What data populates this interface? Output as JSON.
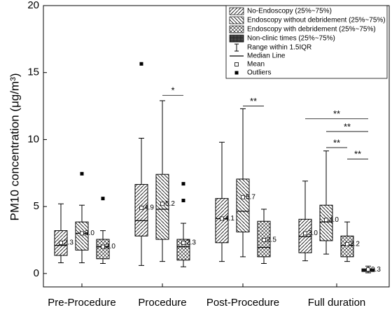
{
  "chart_data": {
    "type": "box",
    "y_label": "PM10 concentration (μg/m³)",
    "categories": [
      "Pre-Procedure",
      "Procedure",
      "Post-Procedure",
      "Full duration"
    ],
    "ylim": [
      -1,
      20
    ],
    "yticks": [
      0,
      5,
      10,
      15,
      20
    ],
    "series": [
      {
        "name": "No-Endoscopy (25%~75%)",
        "pattern": "forward",
        "color": "#000000",
        "stats": [
          {
            "low": 0.8,
            "q1": 1.35,
            "median": 2.1,
            "q3": 3.2,
            "high": 5.2,
            "mean": 2.3,
            "mean_label": "2.3",
            "outliers": []
          },
          {
            "low": 0.6,
            "q1": 2.8,
            "median": 3.95,
            "q3": 6.65,
            "high": 10.1,
            "mean": 4.9,
            "mean_label": "4.9",
            "outliers": [
              15.65
            ]
          },
          {
            "low": 0.9,
            "q1": 2.3,
            "median": 4.1,
            "q3": 5.6,
            "high": 9.8,
            "mean": 4.1,
            "mean_label": "4.1",
            "outliers": []
          },
          {
            "low": 0.95,
            "q1": 1.55,
            "median": 2.75,
            "q3": 4.05,
            "high": 6.9,
            "mean": 3.0,
            "mean_label": "3.0",
            "outliers": []
          }
        ]
      },
      {
        "name": "Endoscopy without debridement (25%~75%)",
        "pattern": "backward",
        "color": "#000000",
        "stats": [
          {
            "low": 0.8,
            "q1": 1.75,
            "median": 3.0,
            "q3": 3.85,
            "high": 5.1,
            "mean": 3.0,
            "mean_label": "3.0",
            "outliers": [
              7.45
            ]
          },
          {
            "low": 0.9,
            "q1": 2.55,
            "median": 4.8,
            "q3": 7.4,
            "high": 12.9,
            "mean": 5.2,
            "mean_label": "5.2",
            "outliers": []
          },
          {
            "low": 1.25,
            "q1": 3.1,
            "median": 4.65,
            "q3": 7.05,
            "high": 12.3,
            "mean": 5.7,
            "mean_label": "5.7",
            "outliers": []
          },
          {
            "low": 1.45,
            "q1": 2.45,
            "median": 3.85,
            "q3": 5.1,
            "high": 9.15,
            "mean": 4.0,
            "mean_label": "4.0",
            "outliers": []
          }
        ]
      },
      {
        "name": "Endoscopy with debridement (25%~75%)",
        "pattern": "cross",
        "color": "#000000",
        "stats": [
          {
            "low": 0.75,
            "q1": 1.1,
            "median": 2.0,
            "q3": 2.55,
            "high": 3.2,
            "mean": 2.0,
            "mean_label": "2.0",
            "outliers": [
              5.6
            ]
          },
          {
            "low": 0.5,
            "q1": 1.0,
            "median": 2.0,
            "q3": 2.55,
            "high": 3.75,
            "mean": 2.3,
            "mean_label": "2.3",
            "outliers": [
              6.7,
              5.45
            ]
          },
          {
            "low": 0.75,
            "q1": 1.25,
            "median": 1.95,
            "q3": 3.9,
            "high": 4.8,
            "mean": 2.5,
            "mean_label": "2.5",
            "outliers": []
          },
          {
            "low": 0.9,
            "q1": 1.25,
            "median": 2.1,
            "q3": 2.8,
            "high": 3.85,
            "mean": 2.2,
            "mean_label": "2.2",
            "outliers": []
          }
        ]
      },
      {
        "name": "Non-clinic times (25%~75%)",
        "pattern": "dense",
        "color": "#000000",
        "stats": [
          null,
          null,
          null,
          {
            "low": 0.05,
            "q1": 0.15,
            "median": 0.25,
            "q3": 0.35,
            "high": 0.55,
            "mean": 0.3,
            "mean_label": "0.3",
            "outliers": []
          }
        ]
      }
    ],
    "legend_items": [
      "Range within 1.5IQR",
      "Median Line",
      "Mean",
      "Outliers"
    ],
    "annotations": [
      {
        "text": "*",
        "category": 1,
        "from_series": 1,
        "to_series": 2,
        "y": 13.3
      },
      {
        "text": "**",
        "category": 2,
        "from_series": 1,
        "to_series": 2,
        "y": 12.5
      },
      {
        "text": "**",
        "category": 3,
        "from_series": 0,
        "to_series": 3,
        "y": 11.55
      },
      {
        "text": "**",
        "category": 3,
        "from_series": 1,
        "to_series": 3,
        "y": 10.6
      },
      {
        "text": "**",
        "category": 3,
        "from_series": 1,
        "to_series": 2,
        "y": 9.4
      },
      {
        "text": "**",
        "category": 3,
        "from_series": 2,
        "to_series": 3,
        "y": 8.55
      }
    ]
  }
}
